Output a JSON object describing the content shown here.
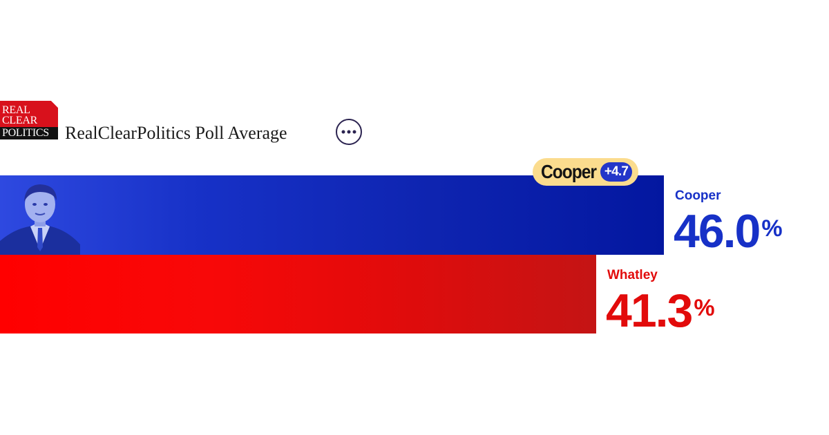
{
  "header": {
    "logo_lines": [
      "REAL",
      "CLEAR",
      "POLITICS"
    ],
    "title": "RealClearPolitics Poll Average",
    "more_icon": "ellipsis-icon"
  },
  "colors": {
    "dem": "#1731c7",
    "rep": "#e20b0b",
    "badge_bg": "#fbdc8e",
    "logo_red": "#d8111c"
  },
  "chart_data": {
    "type": "bar",
    "orientation": "horizontal",
    "title": "RealClearPolitics Poll Average",
    "categories": [
      "Cooper",
      "Whatley"
    ],
    "series": [
      {
        "values": [
          46.0,
          41.3
        ],
        "colors": [
          "#1731c7",
          "#e20b0b"
        ]
      }
    ],
    "value_labels": [
      "46.0",
      "41.3"
    ],
    "unit": "%",
    "xlim": [
      0,
      56
    ],
    "leader": {
      "name": "Cooper",
      "margin": "+4.7"
    },
    "grid": false,
    "legend": "none"
  }
}
